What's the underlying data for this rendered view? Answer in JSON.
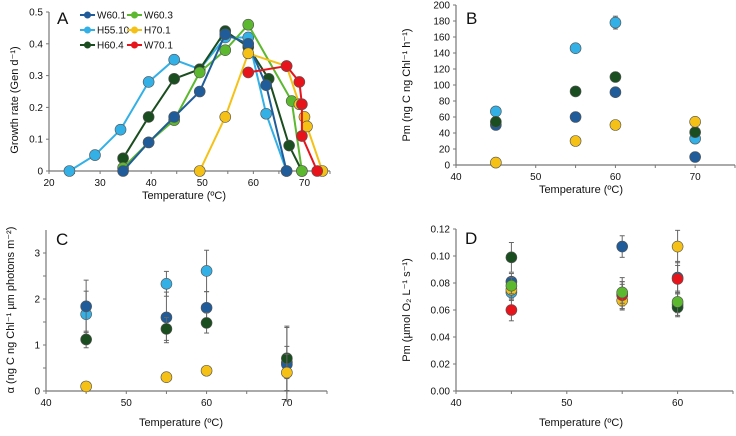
{
  "colors": {
    "W60.1": "#1f5c99",
    "W60.3": "#5cb82e",
    "H55.10": "#33b0e6",
    "H70.1": "#f5c116",
    "H60.4": "#1a4d1f",
    "W70.1": "#e8141c"
  },
  "chart_data": [
    {
      "panel": "A",
      "type": "line",
      "xlabel": "Temperature (ºC)",
      "ylabel": "Growth rate (Gen d⁻¹)",
      "xlim": [
        20,
        75
      ],
      "ylim": [
        0,
        0.5
      ],
      "xticks": [
        20,
        30,
        40,
        50,
        60,
        70
      ],
      "xtick_labels": [
        "20",
        "30",
        "40",
        "50",
        "60",
        "70"
      ],
      "yticks": [
        0,
        0.1,
        0.2,
        0.3,
        0.4,
        0.5
      ],
      "ytick_labels": [
        "0",
        "0.1",
        "0.2",
        "0.3",
        "0.4",
        "0.5"
      ],
      "legend": [
        "W60.1",
        "W60.3",
        "H55.10",
        "H70.1",
        "H60.4",
        "W70.1"
      ],
      "legend_placement": "top-left",
      "series": [
        {
          "name": "H55.10",
          "x": [
            24,
            29,
            34,
            39.5,
            44.5,
            49.5,
            54.5,
            59,
            62.5,
            66.5
          ],
          "y": [
            0,
            0.05,
            0.13,
            0.28,
            0.35,
            0.32,
            0.42,
            0.42,
            0.18,
            0
          ]
        },
        {
          "name": "H60.4",
          "x": [
            34.5,
            39.5,
            44.5,
            49.5,
            54.5,
            59,
            63,
            67,
            69.5
          ],
          "y": [
            0.04,
            0.17,
            0.29,
            0.32,
            0.44,
            0.39,
            0.29,
            0.08,
            0
          ]
        },
        {
          "name": "W60.3",
          "x": [
            34.5,
            39.5,
            44.5,
            49.5,
            54.5,
            59,
            67.5,
            69.5
          ],
          "y": [
            0.01,
            0.09,
            0.16,
            0.31,
            0.38,
            0.46,
            0.22,
            0
          ]
        },
        {
          "name": "W60.1",
          "x": [
            34.5,
            39.5,
            44.5,
            49.5,
            54.5,
            59,
            62.5,
            66.5
          ],
          "y": [
            0,
            0.09,
            0.17,
            0.25,
            0.43,
            0.4,
            0.27,
            0
          ]
        },
        {
          "name": "H70.1",
          "x": [
            49.5,
            54.5,
            59,
            66.5,
            69,
            70,
            70.5,
            73.5
          ],
          "y": [
            0,
            0.17,
            0.37,
            0.33,
            0.21,
            0.17,
            0.14,
            0
          ]
        },
        {
          "name": "W70.1",
          "x": [
            59,
            66.5,
            69,
            69.5,
            69.5,
            72.5
          ],
          "y": [
            0.31,
            0.33,
            0.28,
            0.21,
            0.11,
            0
          ]
        }
      ]
    },
    {
      "panel": "B",
      "type": "scatter",
      "xlabel": "Temperature (ºC)",
      "ylabel": "Pm (ng C ng Chl⁻¹ h⁻¹)",
      "xlim": [
        40,
        75
      ],
      "ylim": [
        0,
        200
      ],
      "xticks": [
        40,
        50,
        60,
        70
      ],
      "xtick_labels": [
        "40",
        "50",
        "60",
        "70"
      ],
      "yticks": [
        0,
        20,
        40,
        60,
        80,
        100,
        120,
        140,
        160,
        180,
        200
      ],
      "ytick_labels": [
        "0",
        "20",
        "40",
        "60",
        "80",
        "100",
        "120",
        "140",
        "160",
        "180",
        "200"
      ],
      "series": [
        {
          "name": "W60.1",
          "x": [
            45,
            55,
            60,
            70
          ],
          "y": [
            50,
            60,
            91,
            10
          ]
        },
        {
          "name": "H55.10",
          "x": [
            45,
            55,
            60,
            70
          ],
          "y": [
            67,
            146,
            178,
            33
          ],
          "err": [
            0,
            0,
            8,
            0
          ]
        },
        {
          "name": "H60.4",
          "x": [
            45,
            55,
            60,
            70
          ],
          "y": [
            54,
            92,
            110,
            41
          ]
        },
        {
          "name": "H70.1",
          "x": [
            45,
            55,
            60,
            70
          ],
          "y": [
            3,
            30,
            50,
            54
          ]
        }
      ]
    },
    {
      "panel": "C",
      "type": "scatter",
      "xlabel": "Temperature (ºC)",
      "ylabel": "α (ng C ng Chl⁻¹ µm photons m⁻²)",
      "xlim": [
        40,
        75
      ],
      "ylim": [
        0,
        3.5
      ],
      "xticks": [
        40,
        50,
        60,
        70
      ],
      "xtick_labels": [
        "40",
        "50",
        "60",
        "70"
      ],
      "yticks": [
        0,
        1,
        2,
        3
      ],
      "ytick_labels": [
        "0",
        "1",
        "2",
        "3"
      ],
      "series": [
        {
          "name": "H55.10",
          "x": [
            45,
            55,
            60,
            70
          ],
          "y": [
            1.67,
            2.33,
            2.61,
            0.62
          ],
          "err": [
            0.5,
            0.27,
            0.45,
            0.35
          ]
        },
        {
          "name": "W60.1",
          "x": [
            45,
            55,
            60,
            70
          ],
          "y": [
            1.84,
            1.6,
            1.81,
            0.58
          ],
          "err": [
            0.57,
            0.55,
            0.35,
            0.8
          ]
        },
        {
          "name": "H60.4",
          "x": [
            45,
            55,
            60,
            70
          ],
          "y": [
            1.12,
            1.35,
            1.48,
            0.71
          ],
          "err": [
            0.18,
            0.25,
            0.22,
            0.7
          ]
        },
        {
          "name": "H70.1",
          "x": [
            45,
            55,
            60,
            70
          ],
          "y": [
            0.1,
            0.3,
            0.44,
            0.4
          ],
          "err": [
            0.1,
            0,
            0,
            0.4
          ]
        }
      ]
    },
    {
      "panel": "D",
      "type": "scatter",
      "xlabel": "Temperature (ºC)",
      "ylabel": "Pm (µmol O₂ L⁻¹ s⁻¹)",
      "xlim": [
        40,
        65
      ],
      "ylim": [
        0,
        0.12
      ],
      "xticks": [
        40,
        50,
        60
      ],
      "xtick_labels": [
        "40",
        "50",
        "60"
      ],
      "yticks": [
        0,
        0.02,
        0.04,
        0.06,
        0.08,
        0.1,
        0.12
      ],
      "ytick_labels": [
        "0.00",
        "0.02",
        "0.04",
        "0.06",
        "0.08",
        "0.10",
        "0.12"
      ],
      "series": [
        {
          "name": "H55.10",
          "x": [
            45,
            55,
            60
          ],
          "y": [
            0.073,
            0.071,
            0.064
          ],
          "err": [
            0.006,
            0.01,
            0.008
          ]
        },
        {
          "name": "W60.1",
          "x": [
            45,
            55,
            60
          ],
          "y": [
            0.081,
            0.107,
            0.084
          ],
          "err": [
            0.006,
            0.008,
            0.012
          ]
        },
        {
          "name": "H60.4",
          "x": [
            45,
            55,
            60
          ],
          "y": [
            0.099,
            0.072,
            0.062
          ],
          "err": [
            0.011,
            0.012,
            0.007
          ]
        },
        {
          "name": "H70.1",
          "x": [
            45,
            55,
            60
          ],
          "y": [
            0.075,
            0.067,
            0.107
          ],
          "err": [
            0.006,
            0.006,
            0.012
          ]
        },
        {
          "name": "W70.1",
          "x": [
            45,
            55,
            60
          ],
          "y": [
            0.06,
            0.071,
            0.083
          ],
          "err": [
            0.008,
            0.008,
            0.01
          ]
        },
        {
          "name": "W60.3",
          "x": [
            45,
            55,
            60
          ],
          "y": [
            0.078,
            0.073,
            0.066
          ],
          "err": [
            0.006,
            0.008,
            0.008
          ]
        }
      ]
    }
  ]
}
